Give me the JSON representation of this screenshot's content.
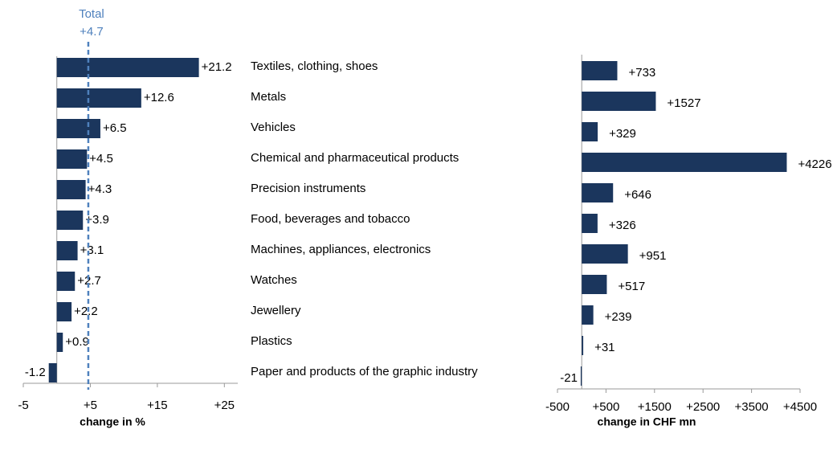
{
  "chart_data": [
    {
      "type": "barh",
      "categories": [
        "Textiles, clothing, shoes",
        "Metals",
        "Vehicles",
        "Chemical and pharmaceutical products",
        "Precision instruments",
        "Food, beverages and tobacco",
        "Machines, appliances, electronics",
        "Watches",
        "Jewellery",
        "Plastics",
        "Paper and products of the graphic industry"
      ],
      "values": [
        21.2,
        12.6,
        6.5,
        4.5,
        4.3,
        3.9,
        3.1,
        2.7,
        2.2,
        0.9,
        -1.2
      ],
      "value_labels": [
        "+21.2",
        "+12.6",
        "+6.5",
        "+4.5",
        "+4.3",
        "+3.9",
        "+3.1",
        "+2.7",
        "+2.2",
        "+0.9",
        "-1.2"
      ],
      "color": "#1b365d",
      "xlabel": "change in %",
      "xlim": [
        -5,
        27
      ],
      "xticks": [
        -5,
        {
          "value": 5,
          "label": "+5"
        },
        {
          "value": 15,
          "label": "+15"
        },
        {
          "value": 25,
          "label": "+25"
        }
      ],
      "reference_line": {
        "title": "Total",
        "value": 4.7,
        "label": "+4.7",
        "color": "#4f81bd"
      }
    },
    {
      "type": "barh",
      "values": [
        733,
        1527,
        329,
        4226,
        646,
        326,
        951,
        517,
        239,
        31,
        -21
      ],
      "value_labels": [
        "+733",
        "+1527",
        "+329",
        "+4226",
        "+646",
        "+326",
        "+951",
        "+517",
        "+239",
        "+31",
        "-21"
      ],
      "color": "#1b365d",
      "xlabel": "change in CHF mn",
      "xlim": [
        -500,
        4500
      ],
      "xticks": [
        -500,
        {
          "value": 500,
          "label": "+500"
        },
        {
          "value": 1500,
          "label": "+1500"
        },
        {
          "value": 2500,
          "label": "+2500"
        },
        {
          "value": 3500,
          "label": "+3500"
        },
        {
          "value": 4500,
          "label": "+4500"
        }
      ]
    }
  ]
}
